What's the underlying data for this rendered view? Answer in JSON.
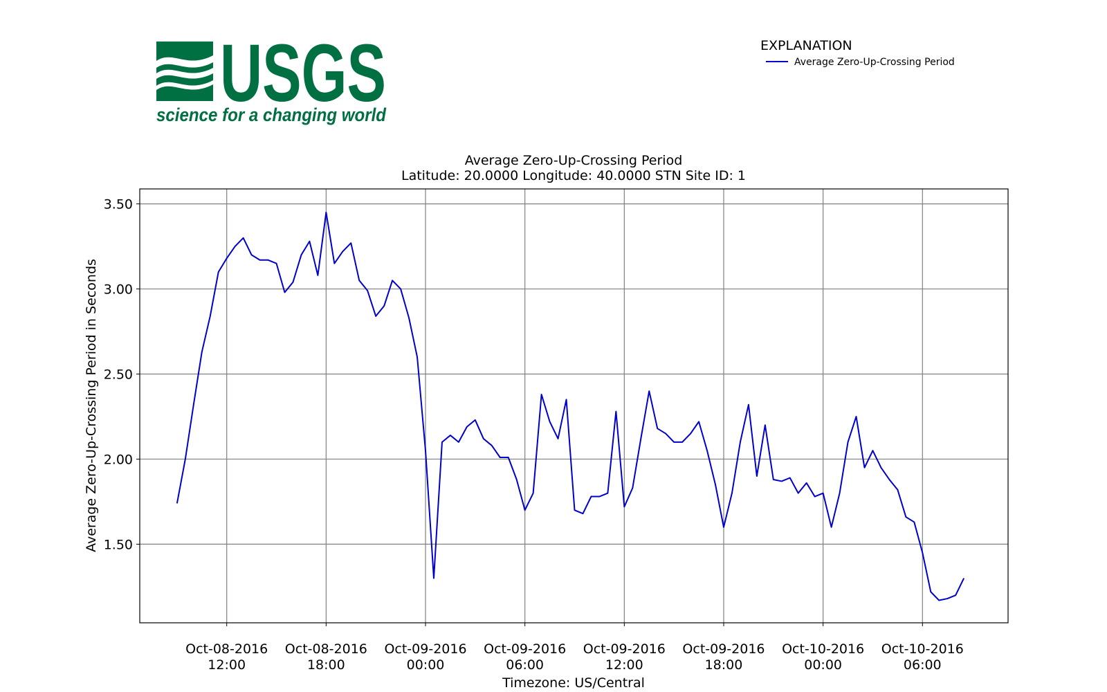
{
  "logo": {
    "name": "USGS",
    "tagline": "science for a changing world"
  },
  "chart_data": {
    "type": "line",
    "title": "Average Zero-Up-Crossing Period",
    "subtitle": "Latitude: 20.0000 Longitude: 40.0000 STN Site ID: 1",
    "xlabel": "Timezone: US/Central",
    "ylabel": "Average Zero-Up-Crossing Period in Seconds",
    "legend_title": "EXPLANATION",
    "legend_position": "upper right",
    "grid": true,
    "x": [
      "2016-10-08 09:00",
      "2016-10-08 09:30",
      "2016-10-08 10:00",
      "2016-10-08 10:30",
      "2016-10-08 11:00",
      "2016-10-08 11:30",
      "2016-10-08 12:00",
      "2016-10-08 12:30",
      "2016-10-08 13:00",
      "2016-10-08 13:30",
      "2016-10-08 14:00",
      "2016-10-08 14:30",
      "2016-10-08 15:00",
      "2016-10-08 15:30",
      "2016-10-08 16:00",
      "2016-10-08 16:30",
      "2016-10-08 17:00",
      "2016-10-08 17:30",
      "2016-10-08 18:00",
      "2016-10-08 18:30",
      "2016-10-08 19:00",
      "2016-10-08 19:30",
      "2016-10-08 20:00",
      "2016-10-08 20:30",
      "2016-10-08 21:00",
      "2016-10-08 21:30",
      "2016-10-08 22:00",
      "2016-10-08 22:30",
      "2016-10-08 23:00",
      "2016-10-08 23:30",
      "2016-10-09 00:00",
      "2016-10-09 00:30",
      "2016-10-09 01:00",
      "2016-10-09 01:30",
      "2016-10-09 02:00",
      "2016-10-09 02:30",
      "2016-10-09 03:00",
      "2016-10-09 03:30",
      "2016-10-09 04:00",
      "2016-10-09 04:30",
      "2016-10-09 05:00",
      "2016-10-09 05:30",
      "2016-10-09 06:00",
      "2016-10-09 06:30",
      "2016-10-09 07:00",
      "2016-10-09 07:30",
      "2016-10-09 08:00",
      "2016-10-09 08:30",
      "2016-10-09 09:00",
      "2016-10-09 09:30",
      "2016-10-09 10:00",
      "2016-10-09 10:30",
      "2016-10-09 11:00",
      "2016-10-09 11:30",
      "2016-10-09 12:00",
      "2016-10-09 12:30",
      "2016-10-09 13:00",
      "2016-10-09 13:30",
      "2016-10-09 14:00",
      "2016-10-09 14:30",
      "2016-10-09 15:00",
      "2016-10-09 15:30",
      "2016-10-09 16:00",
      "2016-10-09 16:30",
      "2016-10-09 17:00",
      "2016-10-09 17:30",
      "2016-10-09 18:00",
      "2016-10-09 18:30",
      "2016-10-09 19:00",
      "2016-10-09 19:30",
      "2016-10-09 20:00",
      "2016-10-09 20:30",
      "2016-10-09 21:00",
      "2016-10-09 21:30",
      "2016-10-09 22:00",
      "2016-10-09 22:30",
      "2016-10-09 23:00",
      "2016-10-09 23:30",
      "2016-10-10 00:00",
      "2016-10-10 00:30",
      "2016-10-10 01:00",
      "2016-10-10 01:30",
      "2016-10-10 02:00",
      "2016-10-10 02:30",
      "2016-10-10 03:00",
      "2016-10-10 03:30",
      "2016-10-10 04:00",
      "2016-10-10 04:30",
      "2016-10-10 05:00",
      "2016-10-10 05:30",
      "2016-10-10 06:00",
      "2016-10-10 06:30",
      "2016-10-10 07:00",
      "2016-10-10 07:30",
      "2016-10-10 08:00",
      "2016-10-10 08:30"
    ],
    "series": [
      {
        "name": "Average Zero-Up-Crossing Period",
        "color": "#0000cc",
        "values": [
          1.74,
          2.0,
          2.32,
          2.63,
          2.84,
          3.1,
          3.18,
          3.25,
          3.3,
          3.2,
          3.17,
          3.17,
          3.15,
          2.98,
          3.04,
          3.2,
          3.28,
          3.08,
          3.45,
          3.15,
          3.22,
          3.27,
          3.05,
          2.99,
          2.84,
          2.9,
          3.05,
          3.0,
          2.83,
          2.6,
          2.05,
          1.3,
          2.1,
          2.14,
          2.1,
          2.19,
          2.23,
          2.12,
          2.08,
          2.01,
          2.01,
          1.88,
          1.7,
          1.8,
          2.38,
          2.22,
          2.12,
          2.35,
          1.7,
          1.68,
          1.78,
          1.78,
          1.8,
          2.28,
          1.72,
          1.83,
          2.12,
          2.4,
          2.18,
          2.15,
          2.1,
          2.1,
          2.15,
          2.22,
          2.05,
          1.85,
          1.6,
          1.8,
          2.1,
          2.32,
          1.9,
          2.2,
          1.88,
          1.87,
          1.89,
          1.8,
          1.86,
          1.78,
          1.8,
          1.6,
          1.8,
          2.1,
          2.25,
          1.95,
          2.05,
          1.95,
          1.88,
          1.82,
          1.66,
          1.63,
          1.45,
          1.22,
          1.17,
          1.18,
          1.2,
          1.3
        ]
      }
    ],
    "xlim": [
      "2016-10-08 06:45",
      "2016-10-10 11:10"
    ],
    "xticks": [
      {
        "value": "2016-10-08 12:00",
        "label": "Oct-08-2016\n12:00"
      },
      {
        "value": "2016-10-08 18:00",
        "label": "Oct-08-2016\n18:00"
      },
      {
        "value": "2016-10-09 00:00",
        "label": "Oct-09-2016\n00:00"
      },
      {
        "value": "2016-10-09 06:00",
        "label": "Oct-09-2016\n06:00"
      },
      {
        "value": "2016-10-09 12:00",
        "label": "Oct-09-2016\n12:00"
      },
      {
        "value": "2016-10-09 18:00",
        "label": "Oct-09-2016\n18:00"
      },
      {
        "value": "2016-10-10 00:00",
        "label": "Oct-10-2016\n00:00"
      },
      {
        "value": "2016-10-10 06:00",
        "label": "Oct-10-2016\n06:00"
      }
    ],
    "ylim": [
      1.038,
      3.588
    ],
    "yticks": [
      {
        "value": 1.5,
        "label": "1.50"
      },
      {
        "value": 2.0,
        "label": "2.00"
      },
      {
        "value": 2.5,
        "label": "2.50"
      },
      {
        "value": 3.0,
        "label": "3.00"
      },
      {
        "value": 3.5,
        "label": "3.50"
      }
    ]
  }
}
